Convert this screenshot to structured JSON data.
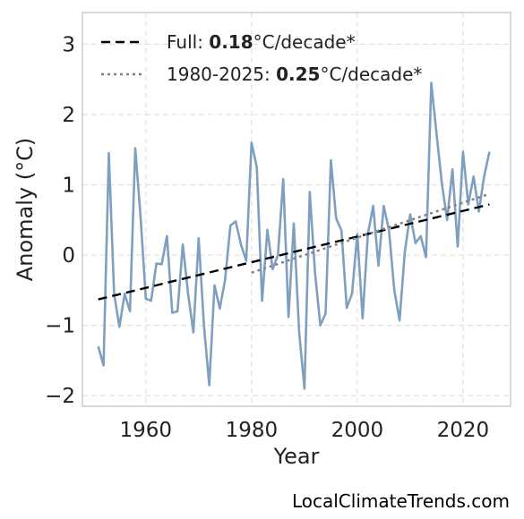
{
  "chart_data": {
    "type": "line",
    "xlabel": "Year",
    "ylabel": "Anomaly (°C)",
    "xlim": [
      1948,
      2029
    ],
    "ylim": [
      -2.15,
      3.45
    ],
    "x_ticks": [
      1960,
      1980,
      2000,
      2020
    ],
    "y_ticks": [
      -2,
      -1,
      0,
      1,
      2,
      3
    ],
    "y_tick_labels": [
      "−2",
      "−1",
      "0",
      "1",
      "2",
      "3"
    ],
    "grid": true,
    "legend_position": "top-left",
    "series": [
      {
        "style": "solid",
        "color": "#7f9fc0",
        "x": [
          1951,
          1952,
          1953,
          1954,
          1955,
          1956,
          1957,
          1958,
          1959,
          1960,
          1961,
          1962,
          1963,
          1964,
          1965,
          1966,
          1967,
          1968,
          1969,
          1970,
          1971,
          1972,
          1973,
          1974,
          1975,
          1976,
          1977,
          1978,
          1979,
          1980,
          1981,
          1982,
          1983,
          1984,
          1985,
          1986,
          1987,
          1988,
          1989,
          1990,
          1991,
          1992,
          1993,
          1994,
          1995,
          1996,
          1997,
          1998,
          1999,
          2000,
          2001,
          2002,
          2003,
          2004,
          2005,
          2006,
          2007,
          2008,
          2009,
          2010,
          2011,
          2012,
          2013,
          2014,
          2015,
          2016,
          2017,
          2018,
          2019,
          2020,
          2021,
          2022,
          2023,
          2024,
          2025
        ],
        "y": [
          -1.3,
          -1.57,
          1.45,
          -0.55,
          -1.02,
          -0.55,
          -0.8,
          1.52,
          0.55,
          -0.62,
          -0.65,
          -0.12,
          -0.13,
          0.27,
          -0.82,
          -0.8,
          0.15,
          -0.55,
          -1.1,
          0.24,
          -1.0,
          -1.85,
          -0.43,
          -0.76,
          -0.35,
          0.42,
          0.48,
          0.15,
          -0.08,
          1.6,
          1.25,
          -0.65,
          0.36,
          -0.2,
          0.0,
          1.08,
          -0.88,
          0.45,
          -1.1,
          -1.9,
          0.9,
          -0.25,
          -1.0,
          -0.83,
          1.35,
          0.52,
          0.35,
          -0.75,
          -0.55,
          0.3,
          -0.9,
          0.3,
          0.7,
          -0.15,
          0.7,
          0.35,
          -0.5,
          -0.93,
          0.05,
          0.58,
          0.17,
          0.27,
          -0.03,
          2.45,
          1.72,
          1.02,
          0.5,
          1.22,
          0.12,
          1.47,
          0.72,
          1.12,
          0.62,
          1.12,
          1.47
        ]
      },
      {
        "style": "dashed",
        "color": "#000000",
        "x": [
          1951,
          2025
        ],
        "y": [
          -0.63,
          0.72
        ]
      },
      {
        "style": "dotted",
        "color": "#808080",
        "x": [
          1980,
          2025
        ],
        "y": [
          -0.25,
          0.87
        ]
      }
    ],
    "legend": [
      {
        "prefix": "Full: ",
        "bold": "0.18",
        "suffix": "°C/decade*",
        "style": "dashed",
        "color": "#000000"
      },
      {
        "prefix": "1980-2025: ",
        "bold": "0.25",
        "suffix": "°C/decade*",
        "style": "dotted",
        "color": "#808080"
      }
    ]
  },
  "credit": "LocalClimateTrends.com"
}
